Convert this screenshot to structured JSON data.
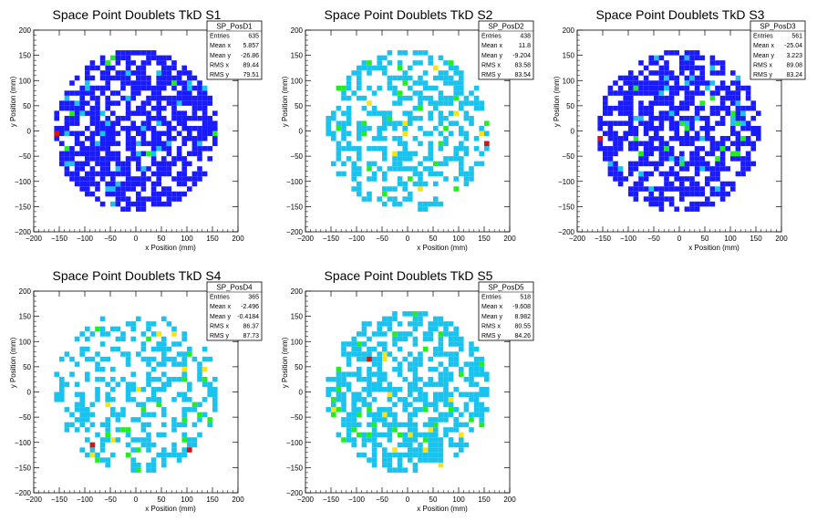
{
  "chart_data": [
    {
      "type": "heatmap",
      "title": "Space Point Doublets TkD S1",
      "xlabel": "x Position (mm)",
      "ylabel": "y Position (mm)",
      "xlim": [
        -200,
        200
      ],
      "ylim": [
        -200,
        200
      ],
      "xticks": [
        "−200",
        "−150",
        "−100",
        "−50",
        "0",
        "50",
        "100",
        "150",
        "200"
      ],
      "yticks": [
        "−200",
        "−150",
        "−100",
        "−50",
        "0",
        "50",
        "100",
        "150",
        "200"
      ],
      "stats": {
        "name": "SP_PosD1",
        "rows": [
          {
            "label": "Entries",
            "value": "635"
          },
          {
            "label": "Mean x",
            "value": "5.857"
          },
          {
            "label": "Mean y",
            "value": "-26.86"
          },
          {
            "label": "RMS x",
            "value": "89.44"
          },
          {
            "label": "RMS y",
            "value": "79.51"
          }
        ]
      },
      "occupancy_radius_mm": 160,
      "bin_width_mm": 10,
      "dominant_bin_color": "#1a1aff",
      "hot_bins": [
        {
          "x": -160,
          "y": -10,
          "color": "#e01010"
        }
      ]
    },
    {
      "type": "heatmap",
      "title": "Space Point Doublets TkD S2",
      "xlabel": "x Position (mm)",
      "ylabel": "y Position (mm)",
      "xlim": [
        -200,
        200
      ],
      "ylim": [
        -200,
        200
      ],
      "xticks": [
        "−200",
        "−150",
        "−100",
        "−50",
        "0",
        "50",
        "100",
        "150",
        "200"
      ],
      "yticks": [
        "−200",
        "−150",
        "−100",
        "−50",
        "0",
        "50",
        "100",
        "150",
        "200"
      ],
      "stats": {
        "name": "SP_PosD2",
        "rows": [
          {
            "label": "Entries",
            "value": "438"
          },
          {
            "label": "Mean x",
            "value": "11.8"
          },
          {
            "label": "Mean y",
            "value": "-9.204"
          },
          {
            "label": "RMS x",
            "value": "83.58"
          },
          {
            "label": "RMS y",
            "value": "83.54"
          }
        ]
      },
      "occupancy_radius_mm": 160,
      "bin_width_mm": 10,
      "dominant_bin_color": "#19c3ee",
      "hot_bins": [
        {
          "x": 150,
          "y": -30,
          "color": "#e01010"
        }
      ]
    },
    {
      "type": "heatmap",
      "title": "Space Point Doublets TkD S3",
      "xlabel": "x Position (mm)",
      "ylabel": "y Position (mm)",
      "xlim": [
        -200,
        200
      ],
      "ylim": [
        -200,
        200
      ],
      "xticks": [
        "−200",
        "−150",
        "−100",
        "−50",
        "0",
        "50",
        "100",
        "150",
        "200"
      ],
      "yticks": [
        "−200",
        "−150",
        "−100",
        "−50",
        "0",
        "50",
        "100",
        "150",
        "200"
      ],
      "stats": {
        "name": "SP_PosD3",
        "rows": [
          {
            "label": "Entries",
            "value": "561"
          },
          {
            "label": "Mean x",
            "value": "-25.04"
          },
          {
            "label": "Mean y",
            "value": "3.223"
          },
          {
            "label": "RMS x",
            "value": "89.08"
          },
          {
            "label": "RMS y",
            "value": "83.24"
          }
        ]
      },
      "occupancy_radius_mm": 160,
      "bin_width_mm": 10,
      "dominant_bin_color": "#1a1aff",
      "hot_bins": [
        {
          "x": -160,
          "y": -20,
          "color": "#e01010"
        }
      ]
    },
    {
      "type": "heatmap",
      "title": "Space Point Doublets TkD S4",
      "xlabel": "x Position (mm)",
      "ylabel": "y Position (mm)",
      "xlim": [
        -200,
        200
      ],
      "ylim": [
        -200,
        200
      ],
      "xticks": [
        "−200",
        "−150",
        "−100",
        "−50",
        "0",
        "50",
        "100",
        "150",
        "200"
      ],
      "yticks": [
        "−200",
        "−150",
        "−100",
        "−50",
        "0",
        "50",
        "100",
        "150",
        "200"
      ],
      "stats": {
        "name": "SP_PosD4",
        "rows": [
          {
            "label": "Entries",
            "value": "365"
          },
          {
            "label": "Mean x",
            "value": "-2.496"
          },
          {
            "label": "Mean y",
            "value": "-0.4184"
          },
          {
            "label": "RMS x",
            "value": "86.37"
          },
          {
            "label": "RMS y",
            "value": "87.73"
          }
        ]
      },
      "occupancy_radius_mm": 160,
      "bin_width_mm": 10,
      "dominant_bin_color": "#19c3ee",
      "hot_bins": [
        {
          "x": -90,
          "y": -110,
          "color": "#e01010"
        },
        {
          "x": 100,
          "y": -120,
          "color": "#e01010"
        }
      ]
    },
    {
      "type": "heatmap",
      "title": "Space Point Doublets TkD S5",
      "xlabel": "x Position (mm)",
      "ylabel": "y Position (mm)",
      "xlim": [
        -200,
        200
      ],
      "ylim": [
        -200,
        200
      ],
      "xticks": [
        "−200",
        "−150",
        "−100",
        "−50",
        "0",
        "50",
        "100",
        "150",
        "200"
      ],
      "yticks": [
        "−200",
        "−150",
        "−100",
        "−50",
        "0",
        "50",
        "100",
        "150",
        "200"
      ],
      "stats": {
        "name": "SP_PosD5",
        "rows": [
          {
            "label": "Entries",
            "value": "518"
          },
          {
            "label": "Mean x",
            "value": "-9.608"
          },
          {
            "label": "Mean y",
            "value": "8.982"
          },
          {
            "label": "RMS x",
            "value": "80.55"
          },
          {
            "label": "RMS y",
            "value": "84.26"
          }
        ]
      },
      "occupancy_radius_mm": 160,
      "bin_width_mm": 10,
      "dominant_bin_color": "#19c3ee",
      "hot_bins": [
        {
          "x": -80,
          "y": 60,
          "color": "#e01010"
        }
      ]
    }
  ]
}
